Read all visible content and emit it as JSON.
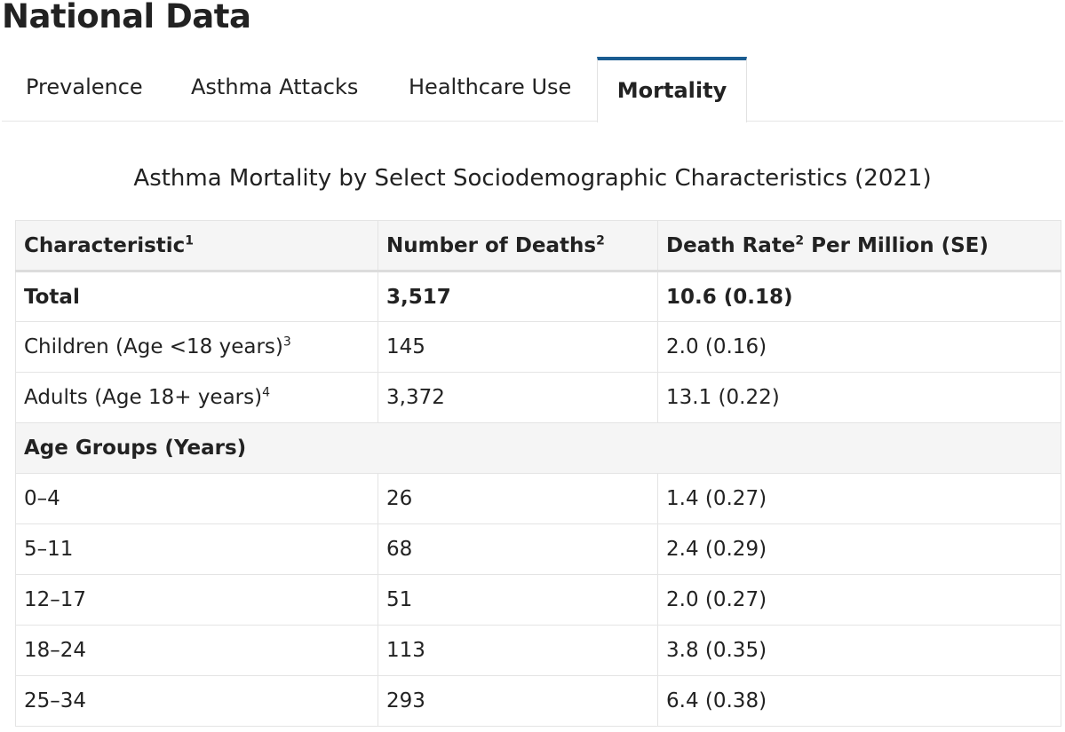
{
  "page": {
    "heading": "National Data"
  },
  "tabs": [
    {
      "label": "Prevalence",
      "active": false
    },
    {
      "label": "Asthma Attacks",
      "active": false
    },
    {
      "label": "Healthcare Use",
      "active": false
    },
    {
      "label": "Mortality",
      "active": true
    }
  ],
  "colors": {
    "active_tab_accent": "#1a5c91",
    "header_bg": "#f5f5f5"
  },
  "table": {
    "caption": "Asthma Mortality by Select Sociodemographic Characteristics (2021)",
    "headers": [
      {
        "text": "Characteristic",
        "sup": "1"
      },
      {
        "text": "Number of Deaths",
        "sup": "2"
      },
      {
        "text": "Death Rate",
        "sup": "2",
        "suffix": " Per Million (SE)"
      }
    ],
    "rows": [
      {
        "characteristic": "Total",
        "sup": "",
        "deaths": "3,517",
        "rate": "10.6 (0.18)"
      },
      {
        "characteristic": "Children (Age <18 years)",
        "sup": "3",
        "deaths": "145",
        "rate": "2.0 (0.16)"
      },
      {
        "characteristic": "Adults (Age 18+ years)",
        "sup": "4",
        "deaths": "3,372",
        "rate": "13.1 (0.22)"
      },
      {
        "section": "Age Groups (Years)"
      },
      {
        "characteristic": "0–4",
        "deaths": "26",
        "rate": "1.4 (0.27)"
      },
      {
        "characteristic": "5–11",
        "deaths": "68",
        "rate": "2.4 (0.29)"
      },
      {
        "characteristic": "12–17",
        "deaths": "51",
        "rate": "2.0 (0.27)"
      },
      {
        "characteristic": "18–24",
        "deaths": "113",
        "rate": "3.8 (0.35)"
      },
      {
        "characteristic": "25–34",
        "deaths": "293",
        "rate": "6.4 (0.38)"
      }
    ]
  }
}
